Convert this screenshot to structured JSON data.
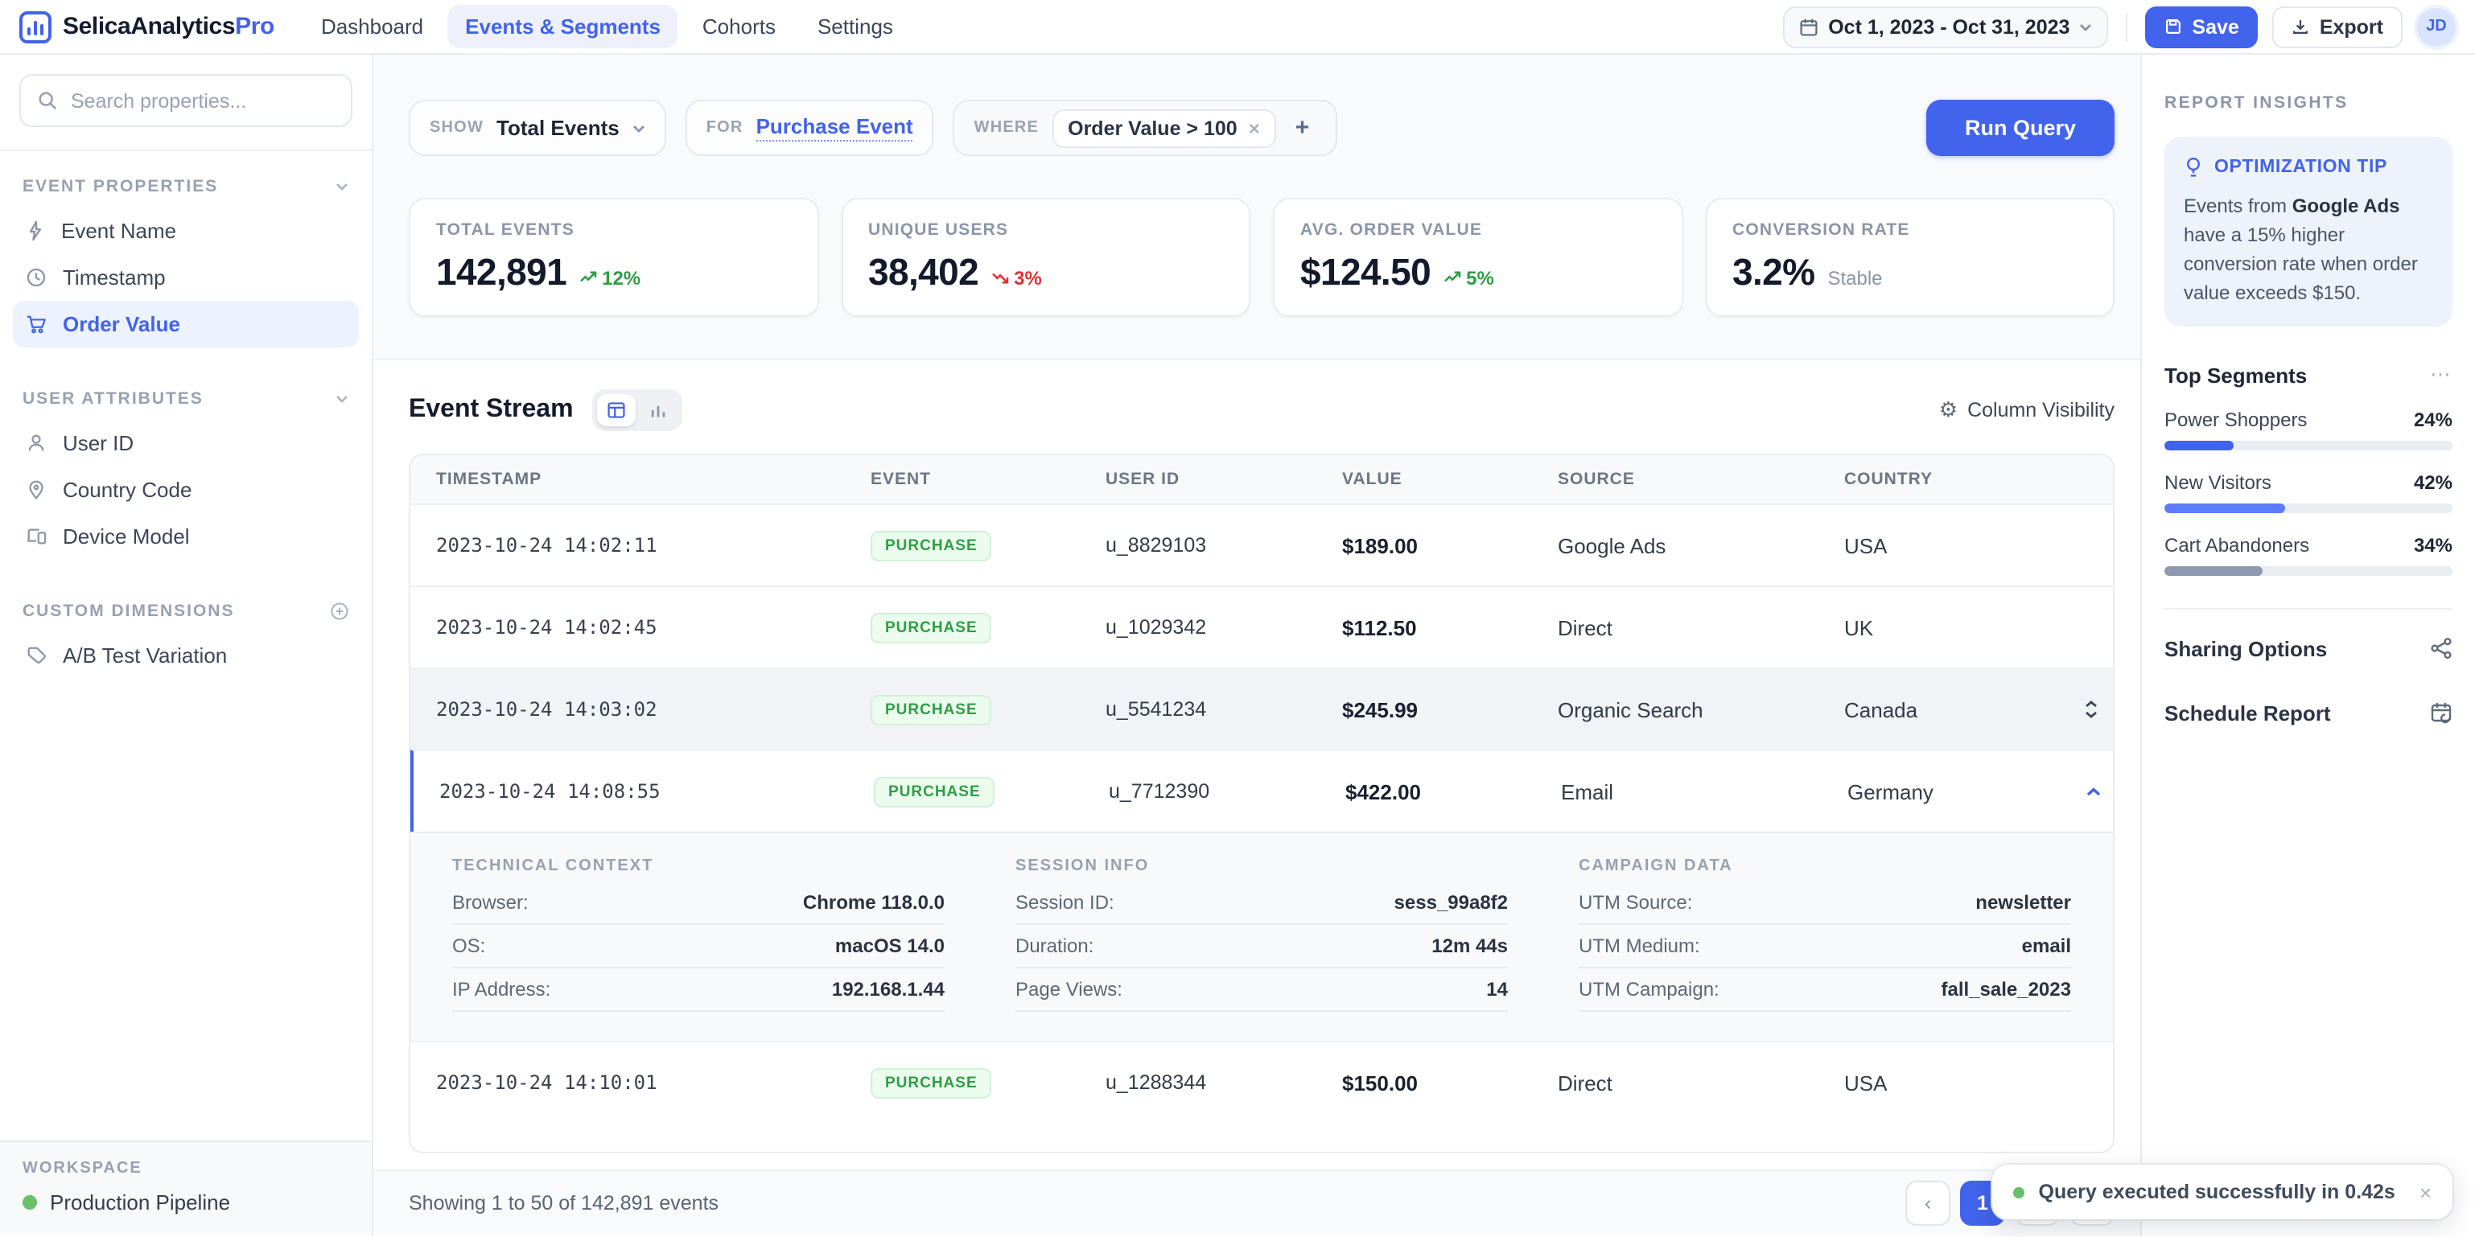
{
  "header": {
    "brand": {
      "name": "SelicaAnalytics",
      "suffix": "Pro"
    },
    "nav": [
      {
        "label": "Dashboard"
      },
      {
        "label": "Events & Segments"
      },
      {
        "label": "Cohorts"
      },
      {
        "label": "Settings"
      }
    ],
    "date_range": "Oct 1, 2023 - Oct 31, 2023",
    "save_label": "Save",
    "export_label": "Export",
    "avatar_initials": "JD"
  },
  "sidebar": {
    "search_placeholder": "Search properties...",
    "sections": [
      {
        "title": "EVENT PROPERTIES",
        "items": [
          {
            "label": "Event Name"
          },
          {
            "label": "Timestamp"
          },
          {
            "label": "Order Value"
          }
        ]
      },
      {
        "title": "USER ATTRIBUTES",
        "items": [
          {
            "label": "User ID"
          },
          {
            "label": "Country Code"
          },
          {
            "label": "Device Model"
          }
        ]
      },
      {
        "title": "CUSTOM DIMENSIONS",
        "items": [
          {
            "label": "A/B Test Variation"
          }
        ]
      }
    ],
    "workspace": {
      "title": "WORKSPACE",
      "name": "Production Pipeline"
    }
  },
  "query_bar": {
    "show": {
      "label": "SHOW",
      "value": "Total Events"
    },
    "for": {
      "label": "FOR",
      "value": "Purchase Event"
    },
    "where": {
      "label": "WHERE",
      "chip": "Order Value > 100"
    },
    "run_label": "Run Query"
  },
  "stats": [
    {
      "label": "TOTAL EVENTS",
      "value": "142,891",
      "trend": "12%",
      "direction": "up"
    },
    {
      "label": "UNIQUE USERS",
      "value": "38,402",
      "trend": "3%",
      "direction": "down"
    },
    {
      "label": "AVG. ORDER VALUE",
      "value": "$124.50",
      "trend": "5%",
      "direction": "up"
    },
    {
      "label": "CONVERSION RATE",
      "value": "3.2%",
      "trend": "Stable",
      "direction": "flat"
    }
  ],
  "event_stream": {
    "title": "Event Stream",
    "column_visibility_label": "Column Visibility",
    "columns": [
      "TIMESTAMP",
      "EVENT",
      "USER ID",
      "VALUE",
      "SOURCE",
      "COUNTRY"
    ],
    "rows": [
      {
        "timestamp": "2023-10-24 14:02:11",
        "event": "PURCHASE",
        "user_id": "u_8829103",
        "value": "$189.00",
        "source": "Google Ads",
        "country": "USA"
      },
      {
        "timestamp": "2023-10-24 14:02:45",
        "event": "PURCHASE",
        "user_id": "u_1029342",
        "value": "$112.50",
        "source": "Direct",
        "country": "UK"
      },
      {
        "timestamp": "2023-10-24 14:03:02",
        "event": "PURCHASE",
        "user_id": "u_5541234",
        "value": "$245.99",
        "source": "Organic Search",
        "country": "Canada"
      },
      {
        "timestamp": "2023-10-24 14:08:55",
        "event": "PURCHASE",
        "user_id": "u_7712390",
        "value": "$422.00",
        "source": "Email",
        "country": "Germany"
      },
      {
        "timestamp": "2023-10-24 14:10:01",
        "event": "PURCHASE",
        "user_id": "u_1288344",
        "value": "$150.00",
        "source": "Direct",
        "country": "USA"
      }
    ],
    "expanded_detail": {
      "groups": [
        {
          "title": "TECHNICAL CONTEXT",
          "fields": [
            [
              "Browser:",
              "Chrome 118.0.0"
            ],
            [
              "OS:",
              "macOS 14.0"
            ],
            [
              "IP Address:",
              "192.168.1.44"
            ]
          ]
        },
        {
          "title": "SESSION INFO",
          "fields": [
            [
              "Session ID:",
              "sess_99a8f2"
            ],
            [
              "Duration:",
              "12m 44s"
            ],
            [
              "Page Views:",
              "14"
            ]
          ]
        },
        {
          "title": "CAMPAIGN DATA",
          "fields": [
            [
              "UTM Source:",
              "newsletter"
            ],
            [
              "UTM Medium:",
              "email"
            ],
            [
              "UTM Campaign:",
              "fall_sale_2023"
            ]
          ]
        }
      ]
    },
    "footer": {
      "summary": "Showing 1 to 50 of 142,891 events",
      "prev": "‹",
      "pages": [
        "1",
        "2",
        "3"
      ]
    }
  },
  "insights": {
    "title": "REPORT INSIGHTS",
    "tip": {
      "title": "OPTIMIZATION TIP",
      "text_before": "Events from ",
      "bold": "Google Ads",
      "text_after": " have a 15% higher conversion rate when order value exceeds $150."
    },
    "segments": {
      "title": "Top Segments",
      "menu": "⋯",
      "items": [
        {
          "name": "Power Shoppers",
          "value": "24%",
          "pct": 24,
          "color": "#4263eb"
        },
        {
          "name": "New Visitors",
          "value": "42%",
          "pct": 42,
          "color": "#5c7cfa"
        },
        {
          "name": "Cart Abandoners",
          "value": "34%",
          "pct": 34,
          "color": "#8d99ae"
        }
      ]
    },
    "actions": [
      {
        "label": "Sharing Options"
      },
      {
        "label": "Schedule Report"
      }
    ]
  },
  "toast": {
    "message": "Query executed successfully in 0.42s",
    "close": "×"
  }
}
